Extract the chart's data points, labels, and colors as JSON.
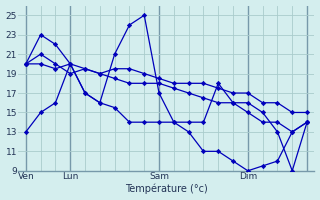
{
  "background_color": "#d4eeee",
  "grid_color": "#aacccc",
  "line_color": "#0000bb",
  "marker_color": "#0000bb",
  "xlabel": "Température (°c)",
  "ylim": [
    9,
    26
  ],
  "yticks": [
    9,
    11,
    13,
    15,
    17,
    19,
    21,
    23,
    25
  ],
  "xtick_labels": [
    "Ven",
    "Lun",
    "Sam",
    "Dim",
    ""
  ],
  "vlines": [
    0,
    3,
    9,
    15,
    19
  ],
  "series": [
    [
      13,
      15,
      16,
      20,
      17,
      16,
      15.5,
      14,
      14,
      14,
      14,
      13,
      11,
      11,
      10,
      9,
      9.5,
      10,
      13,
      14
    ],
    [
      20,
      23,
      22,
      20,
      17,
      16,
      21,
      24,
      25,
      17,
      14,
      14,
      14,
      18,
      16,
      16,
      15,
      13,
      9,
      14
    ],
    [
      20,
      20,
      19.5,
      20,
      19.5,
      19,
      19.5,
      19.5,
      19,
      18.5,
      18,
      18,
      18,
      17.5,
      17,
      17,
      16,
      16,
      15,
      15
    ],
    [
      20,
      21,
      20,
      19,
      19.5,
      19,
      18.5,
      18,
      18,
      18,
      17.5,
      17,
      16.5,
      16,
      16,
      15,
      14,
      14,
      13,
      14
    ]
  ]
}
